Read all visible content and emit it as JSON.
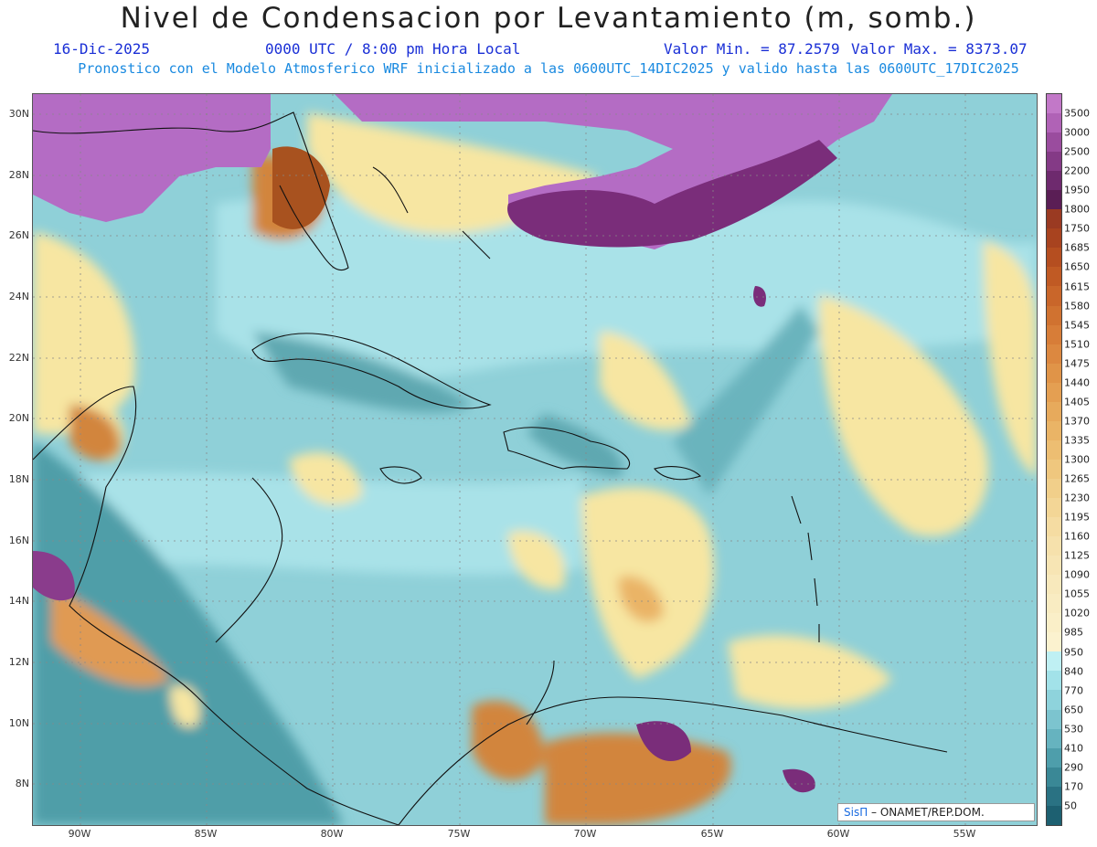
{
  "header": {
    "title": "Nivel de Condensacion por Levantamiento (m, somb.)",
    "date": "16-Dic-2025",
    "time": "0000 UTC / 8:00 pm Hora Local",
    "min_label": "Valor Min. = 87.2579",
    "max_label": "Valor Max. = 8373.07",
    "model_line": "Pronostico con el Modelo Atmosferico WRF inicializado a las 0600UTC_14DIC2025 y valido hasta las  0600UTC_17DIC2025"
  },
  "map": {
    "lat_labels": [
      "30N",
      "28N",
      "26N",
      "24N",
      "22N",
      "20N",
      "18N",
      "16N",
      "14N",
      "12N",
      "10N",
      "8N"
    ],
    "lon_labels": [
      "90W",
      "85W",
      "80W",
      "75W",
      "70W",
      "65W",
      "60W",
      "55W"
    ],
    "colors": {
      "violet": "#b46cc4",
      "dark_violet": "#7a2d7a",
      "orange": "#d2853c",
      "yellow": "#f7e6a2",
      "light_cyan": "#a9e2e8",
      "cyan": "#7fc9d2",
      "teal": "#4f9ea8",
      "coast": "#111111"
    }
  },
  "colorbar": {
    "labels": [
      "3500",
      "3000",
      "2500",
      "2200",
      "1950",
      "1800",
      "1750",
      "1685",
      "1650",
      "1615",
      "1580",
      "1545",
      "1510",
      "1475",
      "1440",
      "1405",
      "1370",
      "1335",
      "1300",
      "1265",
      "1230",
      "1195",
      "1160",
      "1125",
      "1090",
      "1055",
      "1020",
      "985",
      "950",
      "840",
      "770",
      "650",
      "530",
      "410",
      "290",
      "170",
      "50"
    ],
    "colors": [
      "#c278c8",
      "#b062b6",
      "#9a4c9e",
      "#843a86",
      "#6e2a6e",
      "#5a1e55",
      "#9a3a22",
      "#a8431f",
      "#b54e20",
      "#c05a24",
      "#c9662a",
      "#d07230",
      "#d77d38",
      "#dc8840",
      "#e09448",
      "#e49f52",
      "#e7aa5c",
      "#eab466",
      "#edbe72",
      "#efc77e",
      "#f1cf8a",
      "#f3d696",
      "#f5dca2",
      "#f6e1ac",
      "#f7e5b4",
      "#f8e9bc",
      "#f9ecc2",
      "#faefc8",
      "#fbf2cf",
      "#bff0f3",
      "#a2e2e9",
      "#8ed3dc",
      "#7cc4cf",
      "#66b3bf",
      "#4e9eab",
      "#3a8896",
      "#2a7283",
      "#1d6071"
    ]
  },
  "credit": {
    "brand": "SisΠ",
    "org": " – ONAMET/REP.DOM."
  }
}
